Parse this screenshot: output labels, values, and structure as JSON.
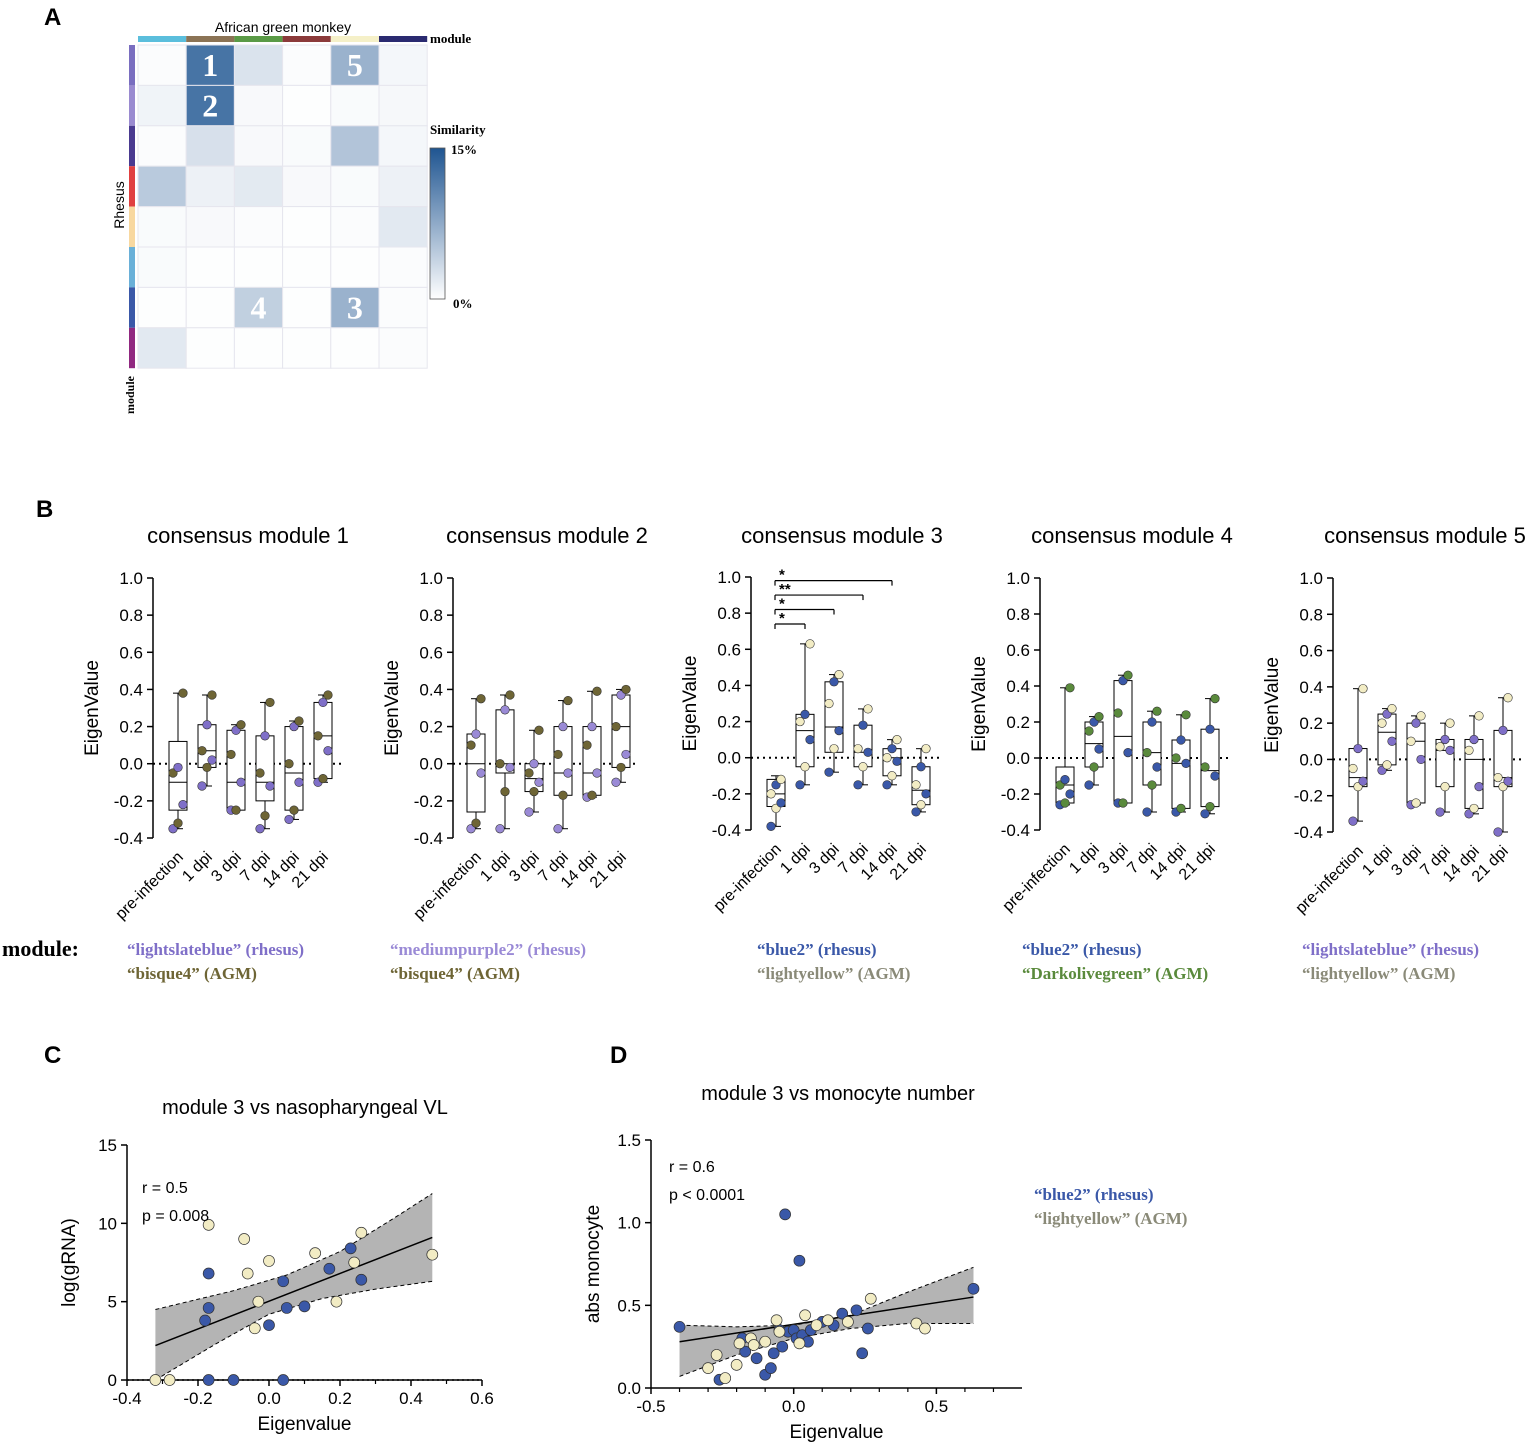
{
  "panels": {
    "A": "A",
    "B": "B",
    "C": "C",
    "D": "D"
  },
  "colors": {
    "rhesus_blue2": "#3a58a8",
    "agm_lightyellow": "#f2ecc4",
    "agm_lightyellow_text": "#8a8a78",
    "lightslateblue": "#7f6fc8",
    "mediumpurple2": "#9a8ad6",
    "bisque4": "#6e6535",
    "darkolivegreen": "#5a8a3c",
    "heat_max": "#1f5591",
    "band_gray": "#b0b0b0"
  },
  "heatmap": {
    "top_label": "African green monkey",
    "module_label": "module",
    "side_label": "Rhesus",
    "side_module_label": "module",
    "legend_title": "Similarity",
    "legend_max": "15%",
    "legend_min": "0%",
    "col_colors": [
      "#5bbedc",
      "#8b7355",
      "#5a9a46",
      "#8b3a3a",
      "#f5f0c8",
      "#2a2a70"
    ],
    "row_colors": [
      "#7a6ec0",
      "#9a8ad0",
      "#4a3a90",
      "#e04040",
      "#f8d8a0",
      "#6ab0d8",
      "#3a58a8",
      "#902880"
    ],
    "values": [
      [
        0.02,
        1.0,
        0.2,
        0.02,
        0.55,
        0.06
      ],
      [
        0.08,
        1.0,
        0.04,
        0.01,
        0.03,
        0.05
      ],
      [
        0.02,
        0.22,
        0.04,
        0.03,
        0.42,
        0.06
      ],
      [
        0.38,
        0.1,
        0.15,
        0.04,
        0.03,
        0.1
      ],
      [
        0.03,
        0.04,
        0.02,
        0.01,
        0.02,
        0.16
      ],
      [
        0.03,
        0.01,
        0.01,
        0.01,
        0.01,
        0.02
      ],
      [
        0.01,
        0.01,
        0.34,
        0.01,
        0.55,
        0.02
      ],
      [
        0.16,
        0.01,
        0.01,
        0.01,
        0.01,
        0.02
      ]
    ],
    "cell_labels": [
      {
        "row": 0,
        "col": 1,
        "text": "1"
      },
      {
        "row": 1,
        "col": 1,
        "text": "2"
      },
      {
        "row": 0,
        "col": 4,
        "text": "5"
      },
      {
        "row": 6,
        "col": 2,
        "text": "4"
      },
      {
        "row": 6,
        "col": 4,
        "text": "3"
      }
    ]
  },
  "module_word": "module:",
  "chart_data": [
    {
      "type": "box",
      "title": "consensus module 1",
      "ylabel": "EigenValue",
      "ylim": [
        -0.4,
        1.0
      ],
      "yticks": [
        "1.0",
        "0.8",
        "0.6",
        "0.4",
        "0.2",
        "0.0",
        "-0.2",
        "-0.4"
      ],
      "categories": [
        "pre-infection",
        "1 dpi",
        "3 dpi",
        "7 dpi",
        "14 dpi",
        "21 dpi"
      ],
      "color_a": "#7f6fc8",
      "color_b": "#6e6535",
      "legend": [
        {
          "text": "“lightslateblue” (rhesus)",
          "color": "#7f6fc8"
        },
        {
          "text": "“bisque4” (AGM)",
          "color": "#6e6535"
        }
      ],
      "boxes": [
        [
          -0.35,
          -0.25,
          -0.1,
          0.12,
          0.38
        ],
        [
          -0.12,
          -0.02,
          0.07,
          0.21,
          0.37
        ],
        [
          -0.25,
          -0.25,
          -0.1,
          0.18,
          0.21
        ],
        [
          -0.35,
          -0.2,
          -0.1,
          0.15,
          0.33
        ],
        [
          -0.3,
          -0.25,
          -0.05,
          0.2,
          0.23
        ],
        [
          -0.1,
          -0.08,
          0.15,
          0.33,
          0.37
        ]
      ],
      "points": [
        [
          -0.35,
          -0.32,
          -0.22,
          -0.05,
          -0.02,
          0.38
        ],
        [
          -0.12,
          -0.02,
          0.02,
          0.07,
          0.21,
          0.37
        ],
        [
          -0.25,
          -0.25,
          -0.1,
          0.05,
          0.18,
          0.21
        ],
        [
          -0.35,
          -0.28,
          -0.12,
          -0.05,
          0.15,
          0.33
        ],
        [
          -0.3,
          -0.25,
          -0.1,
          0.0,
          0.2,
          0.23
        ],
        [
          -0.1,
          -0.08,
          0.07,
          0.15,
          0.33,
          0.37
        ]
      ],
      "sig": []
    },
    {
      "type": "box",
      "title": "consensus module 2",
      "ylabel": "EigenValue",
      "ylim": [
        -0.4,
        1.0
      ],
      "yticks": [
        "1.0",
        "0.8",
        "0.6",
        "0.4",
        "0.2",
        "0.0",
        "-0.2",
        "-0.4"
      ],
      "categories": [
        "pre-infection",
        "1 dpi",
        "3 dpi",
        "7 dpi",
        "14 dpi",
        "21 dpi"
      ],
      "color_a": "#9a8ad6",
      "color_b": "#6e6535",
      "legend": [
        {
          "text": "“mediumpurple2” (rhesus)",
          "color": "#9a8ad6"
        },
        {
          "text": "“bisque4” (AGM)",
          "color": "#6e6535"
        }
      ],
      "boxes": [
        [
          -0.35,
          -0.26,
          0.0,
          0.16,
          0.35
        ],
        [
          -0.35,
          -0.05,
          0.0,
          0.29,
          0.37
        ],
        [
          -0.26,
          -0.15,
          -0.08,
          0.0,
          0.18
        ],
        [
          -0.35,
          -0.17,
          -0.05,
          0.2,
          0.34
        ],
        [
          -0.18,
          -0.17,
          -0.05,
          0.2,
          0.39
        ],
        [
          -0.1,
          -0.02,
          0.2,
          0.37,
          0.4
        ]
      ],
      "points": [
        [
          -0.35,
          -0.32,
          -0.05,
          0.1,
          0.16,
          0.35
        ],
        [
          -0.35,
          -0.15,
          -0.02,
          0.0,
          0.29,
          0.37
        ],
        [
          -0.26,
          -0.15,
          -0.1,
          -0.05,
          0.0,
          0.18
        ],
        [
          -0.35,
          -0.17,
          -0.05,
          0.05,
          0.2,
          0.34
        ],
        [
          -0.18,
          -0.17,
          -0.05,
          0.1,
          0.2,
          0.39
        ],
        [
          -0.1,
          -0.02,
          0.05,
          0.2,
          0.37,
          0.4
        ]
      ],
      "sig": []
    },
    {
      "type": "box",
      "title": "consensus module 3",
      "ylabel": "EigenValue",
      "ylim": [
        -0.4,
        1.0
      ],
      "yticks": [
        "1.0",
        "0.8",
        "0.6",
        "0.4",
        "0.2",
        "0.0",
        "-0.2",
        "-0.4"
      ],
      "categories": [
        "pre-infection",
        "1 dpi",
        "3 dpi",
        "7 dpi",
        "14 dpi",
        "21 dpi"
      ],
      "color_a": "#3a58a8",
      "color_b": "#f2ecc4",
      "legend": [
        {
          "text": "“blue2” (rhesus)",
          "color": "#3a58a8"
        },
        {
          "text": "“lightyellow” (AGM)",
          "color": "#8a8a78"
        }
      ],
      "boxes": [
        [
          -0.38,
          -0.27,
          -0.2,
          -0.12,
          -0.1
        ],
        [
          -0.15,
          -0.05,
          0.15,
          0.24,
          0.63
        ],
        [
          -0.08,
          0.03,
          0.17,
          0.42,
          0.46
        ],
        [
          -0.15,
          -0.05,
          0.03,
          0.18,
          0.27
        ],
        [
          -0.15,
          -0.1,
          0.0,
          0.05,
          0.1
        ],
        [
          -0.3,
          -0.26,
          -0.18,
          -0.05,
          0.05
        ]
      ],
      "points": [
        [
          -0.38,
          -0.28,
          -0.25,
          -0.2,
          -0.15,
          -0.12
        ],
        [
          -0.15,
          -0.05,
          0.1,
          0.2,
          0.24,
          0.63
        ],
        [
          -0.08,
          0.05,
          0.15,
          0.3,
          0.42,
          0.46
        ],
        [
          -0.15,
          -0.05,
          0.03,
          0.05,
          0.18,
          0.27
        ],
        [
          -0.15,
          -0.1,
          -0.02,
          0.0,
          0.05,
          0.1
        ],
        [
          -0.3,
          -0.26,
          -0.2,
          -0.15,
          -0.05,
          0.05
        ]
      ],
      "sig": [
        {
          "from": 0,
          "to": 1,
          "label": "*",
          "y": 0.74
        },
        {
          "from": 0,
          "to": 2,
          "label": "*",
          "y": 0.82
        },
        {
          "from": 0,
          "to": 3,
          "label": "**",
          "y": 0.9
        },
        {
          "from": 0,
          "to": 4,
          "label": "*",
          "y": 0.98
        }
      ]
    },
    {
      "type": "box",
      "title": "consensus module 4",
      "ylabel": "EigenValue",
      "ylim": [
        -0.4,
        1.0
      ],
      "yticks": [
        "1.0",
        "0.8",
        "0.6",
        "0.4",
        "0.2",
        "0.0",
        "-0.2",
        "-0.4"
      ],
      "categories": [
        "pre-infection",
        "1 dpi",
        "3 dpi",
        "7 dpi",
        "14 dpi",
        "21 dpi"
      ],
      "color_a": "#3a58a8",
      "color_b": "#5a8a3c",
      "legend": [
        {
          "text": "“blue2” (rhesus)",
          "color": "#3a58a8"
        },
        {
          "text": "“Darkolivegreen” (AGM)",
          "color": "#5a8a3c"
        }
      ],
      "boxes": [
        [
          -0.26,
          -0.25,
          -0.15,
          -0.05,
          0.39
        ],
        [
          -0.15,
          -0.05,
          0.08,
          0.2,
          0.23
        ],
        [
          -0.25,
          -0.25,
          0.12,
          0.43,
          0.46
        ],
        [
          -0.3,
          -0.15,
          0.03,
          0.2,
          0.26
        ],
        [
          -0.3,
          -0.28,
          -0.03,
          0.1,
          0.24
        ],
        [
          -0.31,
          -0.27,
          -0.07,
          0.16,
          0.33
        ]
      ],
      "points": [
        [
          -0.26,
          -0.25,
          -0.2,
          -0.15,
          -0.12,
          0.39
        ],
        [
          -0.15,
          -0.05,
          0.05,
          0.15,
          0.2,
          0.23
        ],
        [
          -0.25,
          -0.25,
          0.03,
          0.25,
          0.43,
          0.46
        ],
        [
          -0.3,
          -0.15,
          -0.05,
          0.03,
          0.2,
          0.26
        ],
        [
          -0.3,
          -0.28,
          -0.03,
          0.0,
          0.1,
          0.24
        ],
        [
          -0.31,
          -0.27,
          -0.1,
          -0.05,
          0.16,
          0.33
        ]
      ],
      "sig": []
    },
    {
      "type": "box",
      "title": "consensus module 5",
      "ylabel": "EigenValue",
      "ylim": [
        -0.4,
        1.0
      ],
      "yticks": [
        "1.0",
        "0.8",
        "0.6",
        "0.4",
        "0.2",
        "0.0",
        "-0.2",
        "-0.4"
      ],
      "categories": [
        "pre-infection",
        "1 dpi",
        "3 dpi",
        "7 dpi",
        "14 dpi",
        "21 dpi"
      ],
      "color_a": "#7f6fc8",
      "color_b": "#f2ecc4",
      "legend": [
        {
          "text": "“lightslateblue” (rhesus)",
          "color": "#7f6fc8"
        },
        {
          "text": "“lightyellow” (AGM)",
          "color": "#8a8a78"
        }
      ],
      "boxes": [
        [
          -0.34,
          -0.15,
          -0.1,
          0.06,
          0.39
        ],
        [
          -0.06,
          -0.03,
          0.15,
          0.25,
          0.28
        ],
        [
          -0.25,
          -0.24,
          0.1,
          0.2,
          0.24
        ],
        [
          -0.29,
          -0.15,
          0.05,
          0.11,
          0.2
        ],
        [
          -0.3,
          -0.27,
          0.0,
          0.11,
          0.24
        ],
        [
          -0.4,
          -0.15,
          -0.1,
          0.16,
          0.34
        ]
      ],
      "points": [
        [
          -0.34,
          -0.15,
          -0.12,
          -0.05,
          0.06,
          0.39
        ],
        [
          -0.06,
          -0.03,
          0.1,
          0.2,
          0.25,
          0.28
        ],
        [
          -0.25,
          -0.24,
          0.0,
          0.1,
          0.2,
          0.24
        ],
        [
          -0.29,
          -0.15,
          0.05,
          0.07,
          0.11,
          0.2
        ],
        [
          -0.3,
          -0.27,
          -0.15,
          0.05,
          0.11,
          0.24
        ],
        [
          -0.4,
          -0.15,
          -0.12,
          -0.1,
          0.16,
          0.34
        ]
      ],
      "sig": []
    },
    {
      "type": "scatter",
      "title": "module 3  vs nasopharyngeal VL",
      "xlabel": "Eigenvalue",
      "ylabel": "log(gRNA)",
      "xlim": [
        -0.4,
        0.6
      ],
      "ylim": [
        0,
        15
      ],
      "xticks": [
        -0.4,
        -0.2,
        0.0,
        0.2,
        0.4,
        0.6
      ],
      "xtick_labels": [
        "-0.4",
        "-0.2",
        "0.0",
        "0.2",
        "0.4",
        "0.6"
      ],
      "yticks": [
        0,
        5,
        10,
        15
      ],
      "ytick_labels": [
        "0",
        "5",
        "10",
        "15"
      ],
      "stats": [
        "r = 0.5",
        "p = 0.008"
      ],
      "fit": {
        "x": [
          -0.32,
          0.46
        ],
        "y": [
          2.2,
          9.1
        ]
      },
      "band_upper": [
        [
          -0.32,
          4.5
        ],
        [
          -0.1,
          5.7
        ],
        [
          0.05,
          6.7
        ],
        [
          0.2,
          8.2
        ],
        [
          0.35,
          10.3
        ],
        [
          0.46,
          11.9
        ]
      ],
      "band_lower": [
        [
          -0.32,
          0.0
        ],
        [
          -0.15,
          2.3
        ],
        [
          0.0,
          4.2
        ],
        [
          0.15,
          5.2
        ],
        [
          0.3,
          5.8
        ],
        [
          0.46,
          6.3
        ]
      ],
      "series": [
        {
          "name": "rhesus",
          "color": "#3a58a8",
          "x": [
            -0.18,
            -0.17,
            -0.17,
            -0.17,
            -0.1,
            0.0,
            0.04,
            0.05,
            0.1,
            0.17,
            0.23,
            0.26,
            0.04
          ],
          "y": [
            3.8,
            6.8,
            4.6,
            0.0,
            0.0,
            3.5,
            6.3,
            4.6,
            4.7,
            7.1,
            8.4,
            6.4,
            0.0
          ]
        },
        {
          "name": "AGM",
          "color": "#f2ecc4",
          "x": [
            -0.32,
            -0.28,
            -0.17,
            -0.07,
            -0.06,
            -0.04,
            -0.03,
            0.0,
            0.13,
            0.19,
            0.24,
            0.26,
            0.46
          ],
          "y": [
            0.0,
            0.0,
            9.9,
            9.0,
            6.8,
            3.3,
            5.0,
            7.6,
            8.1,
            5.0,
            7.5,
            9.4,
            8.0
          ]
        }
      ]
    },
    {
      "type": "scatter",
      "title": "module 3 vs monocyte number",
      "xlabel": "Eigenvalue",
      "ylabel": "abs monocyte",
      "xlim": [
        -0.5,
        0.8
      ],
      "ylim": [
        0.0,
        1.5
      ],
      "xticks": [
        -0.5,
        0.0,
        0.5
      ],
      "xtick_labels": [
        "-0.5",
        "0.0",
        "0.5"
      ],
      "yticks": [
        0.0,
        0.5,
        1.0,
        1.5
      ],
      "ytick_labels": [
        "0.0",
        "0.5",
        "1.0",
        "1.5"
      ],
      "stats": [
        "r = 0.6",
        "p < 0.0001"
      ],
      "legend": [
        {
          "text": "“blue2” (rhesus)",
          "color": "#3a58a8"
        },
        {
          "text": "“lightyellow” (AGM)",
          "color": "#8a8a78"
        }
      ],
      "fit": {
        "x": [
          -0.4,
          0.63
        ],
        "y": [
          0.28,
          0.55
        ]
      },
      "band_upper": [
        [
          -0.4,
          0.38
        ],
        [
          -0.2,
          0.37
        ],
        [
          0.0,
          0.38
        ],
        [
          0.2,
          0.44
        ],
        [
          0.4,
          0.58
        ],
        [
          0.63,
          0.73
        ]
      ],
      "band_lower": [
        [
          -0.4,
          0.07
        ],
        [
          -0.2,
          0.2
        ],
        [
          0.0,
          0.3
        ],
        [
          0.2,
          0.36
        ],
        [
          0.4,
          0.39
        ],
        [
          0.63,
          0.39
        ]
      ],
      "series": [
        {
          "name": "rhesus",
          "color": "#3a58a8",
          "x": [
            -0.4,
            -0.26,
            -0.18,
            -0.17,
            -0.13,
            -0.1,
            -0.08,
            -0.07,
            -0.05,
            -0.04,
            -0.03,
            -0.02,
            0.0,
            0.01,
            0.02,
            0.03,
            0.05,
            0.06,
            0.1,
            0.14,
            0.17,
            0.22,
            0.24,
            0.26,
            0.63
          ],
          "y": [
            0.37,
            0.05,
            0.3,
            0.22,
            0.18,
            0.08,
            0.12,
            0.21,
            0.35,
            0.25,
            1.05,
            0.34,
            0.35,
            0.3,
            0.77,
            0.32,
            0.28,
            0.35,
            0.4,
            0.38,
            0.45,
            0.47,
            0.21,
            0.36,
            0.6
          ]
        },
        {
          "name": "AGM",
          "color": "#f2ecc4",
          "x": [
            -0.3,
            -0.27,
            -0.24,
            -0.2,
            -0.19,
            -0.15,
            -0.14,
            -0.1,
            -0.06,
            -0.05,
            0.04,
            0.08,
            0.12,
            0.19,
            0.27,
            0.43,
            0.46,
            0.02
          ],
          "y": [
            0.12,
            0.2,
            0.06,
            0.14,
            0.27,
            0.3,
            0.26,
            0.28,
            0.41,
            0.34,
            0.44,
            0.38,
            0.41,
            0.4,
            0.54,
            0.39,
            0.36,
            0.27
          ]
        }
      ]
    }
  ]
}
